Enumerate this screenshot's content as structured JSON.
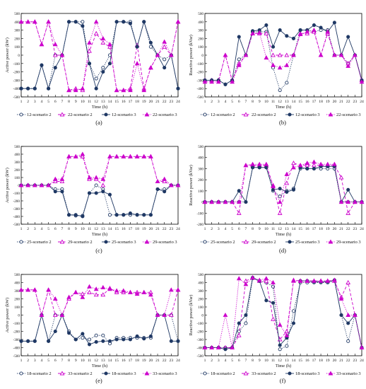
{
  "series_style": {
    "a": {
      "color": "#1f3864",
      "line": "dotted",
      "marker": "circle-open"
    },
    "b": {
      "color": "#cc00cc",
      "line": "dashed",
      "marker": "triangle-open"
    },
    "c": {
      "color": "#1f3864",
      "line": "solid",
      "marker": "circle-filled"
    },
    "d": {
      "color": "#cc00cc",
      "line": "dotted",
      "marker": "triangle-filled"
    }
  },
  "chart_data": [
    {
      "panel": "(a)",
      "type": "line",
      "xlabel": "Time (h)",
      "ylabel": "Active power (kW)",
      "ylim": [
        -500,
        500
      ],
      "yticks": [
        -500,
        -400,
        -300,
        -200,
        -100,
        0,
        100,
        200,
        300,
        400,
        500
      ],
      "x": [
        1,
        2,
        3,
        4,
        5,
        6,
        7,
        8,
        9,
        10,
        11,
        12,
        13,
        14,
        15,
        16,
        17,
        18,
        19,
        20,
        21,
        22,
        23,
        24
      ],
      "series": [
        {
          "name": "12-scenario 2",
          "style": "a",
          "values": [
            -400,
            -400,
            -400,
            -120,
            -400,
            0,
            0,
            400,
            400,
            400,
            -100,
            -280,
            -150,
            0,
            400,
            400,
            400,
            100,
            400,
            100,
            0,
            -50,
            0,
            -400
          ]
        },
        {
          "name": "22-scenario 2",
          "style": "b",
          "values": [
            400,
            400,
            400,
            130,
            400,
            0,
            0,
            -420,
            -400,
            -420,
            50,
            260,
            150,
            100,
            -420,
            -420,
            -400,
            120,
            -400,
            -150,
            0,
            100,
            0,
            400
          ]
        },
        {
          "name": "12-scenario 3",
          "style": "c",
          "values": [
            -400,
            -400,
            -400,
            -120,
            -400,
            -150,
            0,
            400,
            400,
            350,
            -100,
            -400,
            -200,
            -100,
            400,
            400,
            380,
            100,
            400,
            150,
            0,
            -150,
            0,
            -400
          ]
        },
        {
          "name": "22-scenario 3",
          "style": "d",
          "values": [
            400,
            400,
            400,
            130,
            400,
            130,
            0,
            -420,
            -420,
            -400,
            150,
            400,
            200,
            130,
            -420,
            -420,
            -420,
            -100,
            -420,
            -150,
            0,
            160,
            0,
            400
          ]
        }
      ]
    },
    {
      "panel": "(b)",
      "type": "line",
      "xlabel": "Time (h)",
      "ylabel": "Reactive power (kVar)",
      "ylim": [
        -500,
        500
      ],
      "yticks": [
        -500,
        -400,
        -300,
        -200,
        -100,
        0,
        100,
        200,
        300,
        400,
        500
      ],
      "x": [
        1,
        2,
        3,
        4,
        5,
        6,
        7,
        8,
        9,
        10,
        11,
        12,
        13,
        14,
        15,
        16,
        17,
        18,
        19,
        20,
        21,
        22,
        23,
        24
      ],
      "series": [
        {
          "name": "12-scenario 2",
          "style": "a",
          "values": [
            -300,
            -300,
            -300,
            -350,
            -300,
            -50,
            0,
            280,
            280,
            280,
            -150,
            -420,
            -330,
            0,
            300,
            300,
            280,
            300,
            300,
            0,
            0,
            -100,
            0,
            -300
          ]
        },
        {
          "name": "22-scenario 2",
          "style": "b",
          "values": [
            -300,
            -300,
            -300,
            0,
            -300,
            -100,
            0,
            260,
            260,
            260,
            0,
            0,
            0,
            0,
            260,
            260,
            280,
            0,
            260,
            0,
            0,
            -100,
            0,
            -300
          ]
        },
        {
          "name": "12-scenario 3",
          "style": "c",
          "values": [
            -300,
            -300,
            -300,
            -350,
            -300,
            220,
            0,
            290,
            300,
            360,
            100,
            300,
            230,
            200,
            300,
            300,
            360,
            330,
            280,
            390,
            0,
            220,
            0,
            -300
          ]
        },
        {
          "name": "22-scenario 3",
          "style": "d",
          "values": [
            -320,
            -320,
            -320,
            0,
            -320,
            -120,
            0,
            260,
            270,
            -30,
            -120,
            -150,
            -120,
            0,
            250,
            280,
            300,
            0,
            280,
            0,
            0,
            -130,
            0,
            -320
          ]
        }
      ]
    },
    {
      "panel": "(c)",
      "type": "line",
      "xlabel": "Time (h)",
      "ylabel": "Active power (kW)",
      "ylim": [
        -500,
        500
      ],
      "yticks": [
        -500,
        -400,
        -300,
        -200,
        -100,
        0,
        100,
        200,
        300,
        400,
        500
      ],
      "x": [
        1,
        2,
        3,
        4,
        5,
        6,
        7,
        8,
        9,
        10,
        11,
        12,
        13,
        14,
        15,
        16,
        17,
        18,
        19,
        20,
        21,
        22,
        23,
        24
      ],
      "series": [
        {
          "name": "25-scenario 2",
          "style": "a",
          "values": [
            0,
            0,
            0,
            0,
            0,
            -50,
            -50,
            -380,
            -390,
            -390,
            -100,
            0,
            -50,
            -380,
            -380,
            -380,
            -380,
            -380,
            -380,
            -380,
            -50,
            -50,
            0,
            0
          ]
        },
        {
          "name": "29-scenario 2",
          "style": "b",
          "values": [
            0,
            0,
            0,
            0,
            0,
            50,
            50,
            370,
            370,
            370,
            80,
            80,
            0,
            370,
            370,
            370,
            370,
            370,
            370,
            370,
            50,
            50,
            0,
            0
          ]
        },
        {
          "name": "25-scenario 3",
          "style": "c",
          "values": [
            0,
            0,
            0,
            0,
            0,
            -80,
            -80,
            -380,
            -380,
            -400,
            -100,
            -100,
            -80,
            -120,
            -380,
            -380,
            -360,
            -380,
            -380,
            -380,
            -50,
            -80,
            0,
            0
          ]
        },
        {
          "name": "29-scenario 3",
          "style": "d",
          "values": [
            0,
            0,
            0,
            0,
            0,
            80,
            80,
            370,
            370,
            400,
            100,
            100,
            80,
            370,
            370,
            370,
            370,
            370,
            370,
            370,
            50,
            80,
            0,
            0
          ]
        }
      ]
    },
    {
      "panel": "(d)",
      "type": "line",
      "xlabel": "Time (h)",
      "ylabel": "Reactive power (kVar)",
      "ylim": [
        -200,
        500
      ],
      "yticks": [
        -200,
        -100,
        0,
        100,
        200,
        300,
        400,
        500
      ],
      "x": [
        1,
        2,
        3,
        4,
        5,
        6,
        7,
        8,
        9,
        10,
        11,
        12,
        13,
        14,
        15,
        16,
        17,
        18,
        19,
        20,
        21,
        22,
        23,
        24
      ],
      "series": [
        {
          "name": "25-scenario 2",
          "style": "a",
          "values": [
            0,
            0,
            0,
            0,
            0,
            0,
            0,
            310,
            310,
            310,
            100,
            50,
            100,
            120,
            300,
            300,
            300,
            300,
            300,
            300,
            0,
            0,
            0,
            0
          ]
        },
        {
          "name": "29-scenario 2",
          "style": "b",
          "values": [
            0,
            0,
            0,
            0,
            0,
            -100,
            330,
            330,
            330,
            330,
            150,
            -100,
            170,
            350,
            330,
            330,
            330,
            330,
            330,
            330,
            220,
            -100,
            0,
            0
          ]
        },
        {
          "name": "25-scenario 3",
          "style": "c",
          "values": [
            0,
            0,
            0,
            0,
            0,
            100,
            0,
            310,
            310,
            310,
            110,
            120,
            90,
            110,
            310,
            300,
            300,
            320,
            320,
            320,
            0,
            110,
            0,
            0
          ]
        },
        {
          "name": "29-scenario 3",
          "style": "d",
          "values": [
            0,
            0,
            0,
            0,
            0,
            0,
            330,
            340,
            340,
            340,
            140,
            0,
            250,
            310,
            330,
            350,
            360,
            340,
            340,
            340,
            0,
            0,
            0,
            0
          ]
        }
      ]
    },
    {
      "panel": "(e)",
      "type": "line",
      "xlabel": "Time (h)",
      "ylabel": "Active power (kW)",
      "ylim": [
        -500,
        500
      ],
      "yticks": [
        -500,
        -400,
        -300,
        -200,
        -100,
        0,
        100,
        200,
        300,
        400,
        500
      ],
      "x": [
        1,
        2,
        3,
        4,
        5,
        6,
        7,
        8,
        9,
        10,
        11,
        12,
        13,
        14,
        15,
        16,
        17,
        18,
        19,
        20,
        21,
        22,
        23,
        24
      ],
      "series": [
        {
          "name": "18-scenario 2",
          "style": "a",
          "values": [
            -320,
            -320,
            -320,
            0,
            -320,
            0,
            0,
            -200,
            -300,
            -280,
            -300,
            -250,
            -250,
            -350,
            -280,
            -280,
            -280,
            -280,
            -280,
            -280,
            0,
            0,
            0,
            -320
          ]
        },
        {
          "name": "33-scenario 2",
          "style": "b",
          "values": [
            310,
            310,
            310,
            0,
            310,
            0,
            0,
            200,
            280,
            260,
            280,
            250,
            250,
            330,
            280,
            280,
            280,
            280,
            280,
            280,
            0,
            0,
            0,
            310
          ]
        },
        {
          "name": "18-scenario 3",
          "style": "c",
          "values": [
            -320,
            -320,
            -320,
            0,
            -320,
            -200,
            0,
            -220,
            -300,
            -230,
            -360,
            -330,
            -320,
            -320,
            -300,
            -300,
            -300,
            -260,
            -290,
            -260,
            0,
            0,
            -320,
            -320
          ]
        },
        {
          "name": "33-scenario 3",
          "style": "d",
          "values": [
            310,
            310,
            310,
            0,
            310,
            200,
            0,
            220,
            280,
            220,
            350,
            320,
            340,
            320,
            300,
            300,
            280,
            260,
            280,
            250,
            0,
            0,
            310,
            310
          ]
        }
      ]
    },
    {
      "panel": "(f)",
      "type": "line",
      "xlabel": "Time (h)",
      "ylabel": "Reactive power (kVar)",
      "ylim": [
        -500,
        500
      ],
      "yticks": [
        -500,
        -400,
        -300,
        -200,
        -100,
        0,
        100,
        200,
        300,
        400,
        500
      ],
      "x": [
        1,
        2,
        3,
        4,
        5,
        6,
        7,
        8,
        9,
        10,
        11,
        12,
        13,
        14,
        15,
        16,
        17,
        18,
        19,
        20,
        21,
        22,
        23,
        24
      ],
      "series": [
        {
          "name": "18-scenario 2",
          "style": "a",
          "values": [
            -400,
            -400,
            -400,
            -400,
            -400,
            -200,
            -100,
            450,
            420,
            400,
            350,
            -420,
            -380,
            50,
            400,
            400,
            400,
            400,
            400,
            420,
            0,
            -320,
            0,
            -400
          ]
        },
        {
          "name": "33-scenario 2",
          "style": "b",
          "values": [
            -400,
            -400,
            -400,
            -400,
            -400,
            -250,
            420,
            460,
            420,
            420,
            -50,
            -300,
            -200,
            430,
            420,
            420,
            420,
            420,
            420,
            420,
            220,
            400,
            0,
            -400
          ]
        },
        {
          "name": "18-scenario 3",
          "style": "c",
          "values": [
            -400,
            -400,
            -400,
            -420,
            -400,
            -100,
            0,
            460,
            420,
            180,
            150,
            -370,
            -280,
            -100,
            420,
            420,
            410,
            410,
            410,
            430,
            0,
            -100,
            0,
            -400
          ]
        },
        {
          "name": "33-scenario 3",
          "style": "d",
          "values": [
            -400,
            -400,
            -400,
            0,
            -400,
            450,
            380,
            460,
            430,
            450,
            400,
            -120,
            -250,
            420,
            420,
            420,
            420,
            420,
            420,
            430,
            200,
            0,
            0,
            -400
          ]
        }
      ]
    }
  ]
}
